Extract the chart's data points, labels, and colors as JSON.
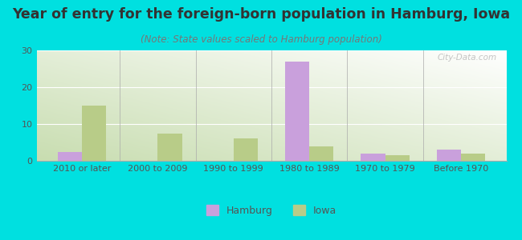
{
  "title": "Year of entry for the foreign-born population in Hamburg, Iowa",
  "subtitle": "(Note: State values scaled to Hamburg population)",
  "categories": [
    "2010 or later",
    "2000 to 2009",
    "1990 to 1999",
    "1980 to 1989",
    "1970 to 1979",
    "Before 1970"
  ],
  "hamburg_values": [
    2.5,
    0,
    0,
    27,
    2.0,
    3.0
  ],
  "iowa_values": [
    15,
    7.5,
    6,
    4,
    1.5,
    2
  ],
  "hamburg_color": "#c9a0dc",
  "iowa_color": "#b8cc88",
  "background_outer": "#00e0e0",
  "grad_color_topleft": "#c8ddb0",
  "grad_color_bottomright": "#ffffff",
  "title_color": "#333333",
  "subtitle_color": "#777777",
  "axis_label_color": "#555555",
  "tick_color": "#555555",
  "ylim": [
    0,
    30
  ],
  "yticks": [
    0,
    10,
    20,
    30
  ],
  "legend_hamburg": "Hamburg",
  "legend_iowa": "Iowa",
  "title_fontsize": 12.5,
  "subtitle_fontsize": 8.5,
  "tick_fontsize": 8,
  "legend_fontsize": 9,
  "bar_width": 0.32,
  "watermark": "City-Data.com",
  "watermark_color": "#bbbbbb"
}
